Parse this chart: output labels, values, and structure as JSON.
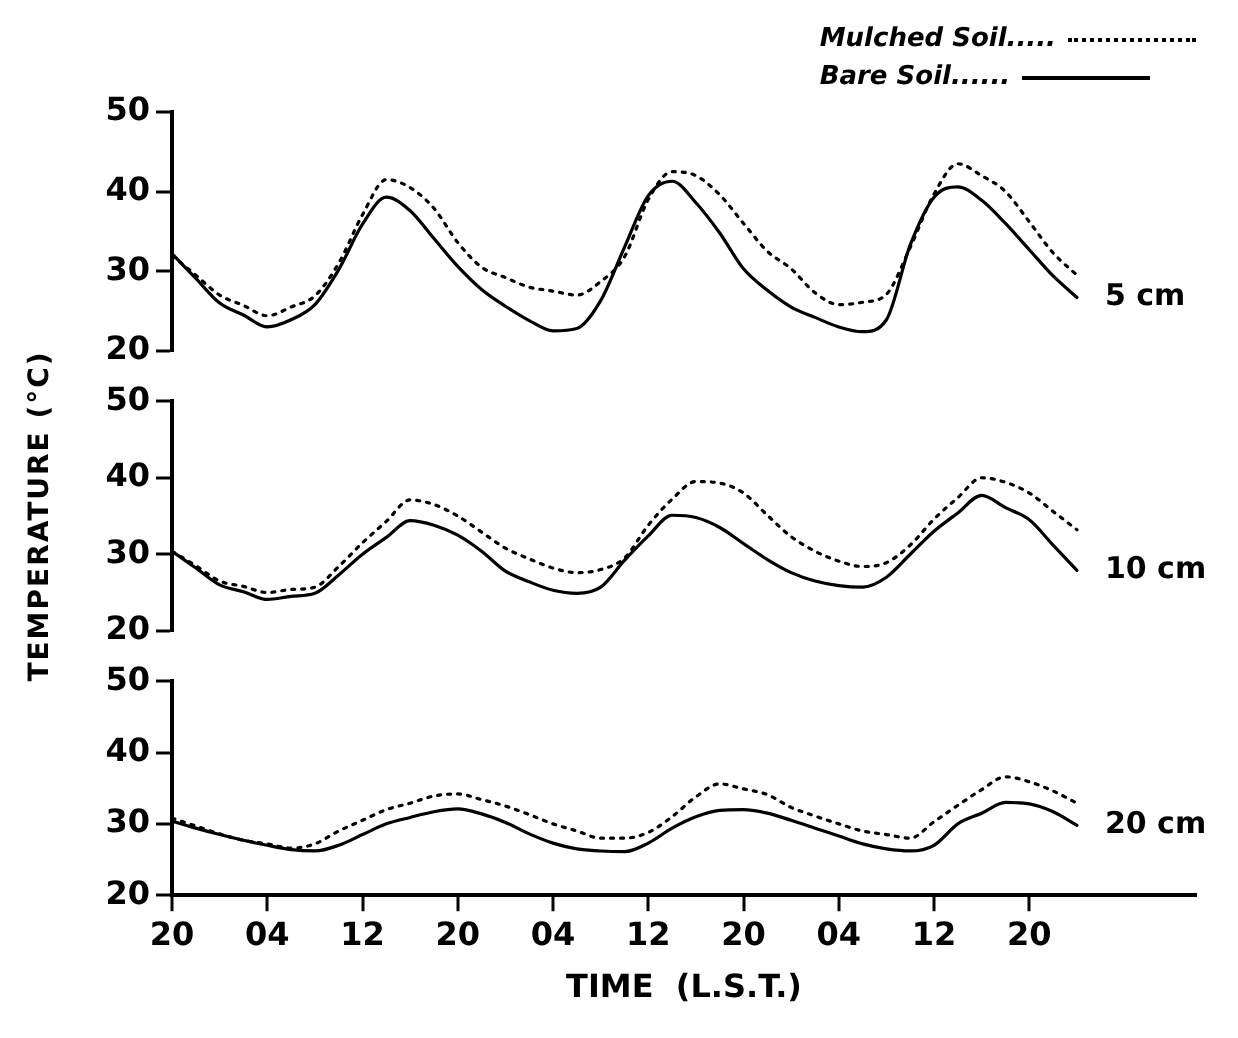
{
  "chart_data": [
    {
      "type": "line",
      "legend": "top right",
      "tick_labels": "y",
      "grid": false,
      "marker": "none",
      "annotations": [
        "5 cm"
      ],
      "categories": [
        "20",
        null,
        null,
        null,
        "04",
        null,
        null,
        null,
        "12",
        null,
        null,
        null,
        "20",
        null,
        null,
        null,
        "04",
        null,
        null,
        null,
        "12",
        null,
        null,
        null,
        "20",
        null,
        null,
        null,
        "04",
        null,
        null,
        null,
        "12",
        null,
        null,
        null,
        "20",
        null,
        null,
        null,
        null,
        null,
        null,
        null
      ],
      "ylim": [
        20,
        50
      ],
      "yticks": [
        20,
        30,
        40,
        50
      ],
      "series": [
        {
          "name": "Mulched Soil.....",
          "color": "#000000",
          "line_style": "dotted",
          "values": [
            32,
            29.5,
            27,
            25.7,
            24.4,
            25.5,
            26.9,
            31,
            37.1,
            41.5,
            40.5,
            37.9,
            33.6,
            30.5,
            29.2,
            28,
            27.5,
            27,
            28.7,
            31.8,
            39,
            42.5,
            42,
            39.6,
            36,
            32.5,
            30.3,
            27.3,
            25.8,
            26.1,
            27.1,
            33,
            39.7,
            43.5,
            42,
            40,
            36.2,
            32.3,
            29.5,
            null,
            null,
            null,
            null,
            null
          ]
        },
        {
          "name": "Bare Soil......",
          "color": "#000000",
          "line_style": "solid",
          "values": [
            32.2,
            29.1,
            26,
            24.5,
            23,
            23.9,
            25.8,
            30.2,
            35.9,
            39.3,
            37.6,
            34.1,
            30.6,
            27.7,
            25.6,
            23.8,
            22.5,
            22.8,
            26.3,
            33,
            39.5,
            41.3,
            38.6,
            34.8,
            30.3,
            27.6,
            25.5,
            24.2,
            23,
            22.4,
            23.9,
            33.3,
            39.3,
            40.6,
            38.9,
            36,
            32.7,
            29.4,
            26.7,
            null,
            null,
            null,
            null,
            null
          ]
        }
      ]
    },
    {
      "type": "line",
      "tick_labels": "y",
      "grid": false,
      "marker": "none",
      "ylabel": "TEMPERATURE (°C)",
      "annotations": [
        "10 cm"
      ],
      "categories": [
        "20",
        null,
        null,
        null,
        "04",
        null,
        null,
        null,
        "12",
        null,
        null,
        null,
        "20",
        null,
        null,
        null,
        "04",
        null,
        null,
        null,
        "12",
        null,
        null,
        null,
        "20",
        null,
        null,
        null,
        "04",
        null,
        null,
        null,
        "12",
        null,
        null,
        null,
        "20",
        null,
        null,
        null,
        null,
        null,
        null,
        null
      ],
      "ylim": [
        20,
        50
      ],
      "yticks": [
        20,
        30,
        40,
        50
      ],
      "series": [
        {
          "color": "#000000",
          "line_style": "dotted",
          "values": [
            30.4,
            28.5,
            26.5,
            25.8,
            25,
            25.4,
            25.7,
            28.4,
            31.5,
            34.3,
            37.1,
            36.5,
            35,
            32.9,
            30.8,
            29.4,
            28.2,
            27.6,
            28,
            29.5,
            33.8,
            37.2,
            39.5,
            39.3,
            38,
            35.1,
            32.3,
            30.4,
            29.1,
            28.4,
            28.9,
            31.2,
            34.6,
            37.4,
            40,
            39.4,
            38,
            35.6,
            33.2,
            null,
            null,
            null,
            null,
            null
          ]
        },
        {
          "color": "#000000",
          "line_style": "solid",
          "values": [
            30.4,
            28.2,
            26,
            25.1,
            24.1,
            24.5,
            24.9,
            27.3,
            30,
            32.2,
            34.4,
            33.8,
            32.5,
            30.4,
            27.8,
            26.4,
            25.3,
            24.9,
            25.7,
            29.2,
            32.4,
            35.1,
            34.8,
            33.5,
            31.4,
            29.3,
            27.6,
            26.5,
            25.9,
            25.7,
            27,
            30,
            33,
            35.4,
            37.7,
            36.1,
            34.5,
            31.2,
            27.9,
            null,
            null,
            null,
            null,
            null
          ]
        }
      ]
    },
    {
      "type": "line",
      "grid": false,
      "marker": "none",
      "xlabel": "TIME  (L.S.T.)",
      "annotations": [
        "20 cm"
      ],
      "categories": [
        "20",
        null,
        null,
        null,
        "04",
        null,
        null,
        null,
        "12",
        null,
        null,
        null,
        "20",
        null,
        null,
        null,
        "04",
        null,
        null,
        null,
        "12",
        null,
        null,
        null,
        "20",
        null,
        null,
        null,
        "04",
        null,
        null,
        null,
        "12",
        null,
        null,
        null,
        "20",
        null,
        null,
        null,
        null,
        null,
        null,
        null
      ],
      "ylim": [
        20,
        50
      ],
      "yticks": [
        20,
        30,
        40,
        50
      ],
      "series": [
        {
          "color": "#000000",
          "line_style": "dotted",
          "values": [
            30.8,
            29.7,
            28.6,
            27.7,
            27.2,
            26.6,
            27.2,
            29,
            30.5,
            32,
            32.9,
            33.9,
            34.2,
            33.4,
            32.5,
            31.3,
            30,
            29,
            28,
            28,
            28.8,
            31,
            33.8,
            35.6,
            34.9,
            34.1,
            32.3,
            31.1,
            30,
            29,
            28.5,
            28,
            30.3,
            32.6,
            34.8,
            36.6,
            35.9,
            34.6,
            32.9,
            null,
            null,
            null,
            null,
            null
          ]
        },
        {
          "color": "#000000",
          "line_style": "solid",
          "values": [
            30.4,
            29.4,
            28.5,
            27.7,
            27,
            26.4,
            26.2,
            27,
            28.5,
            30,
            30.9,
            31.7,
            32.1,
            31.4,
            30.2,
            28.6,
            27.3,
            26.5,
            26.2,
            26.1,
            27.3,
            29.4,
            31,
            31.9,
            32,
            31.5,
            30.5,
            29.4,
            28.3,
            27.2,
            26.5,
            26.2,
            27,
            30,
            31.5,
            33,
            32.8,
            31.7,
            29.8,
            null,
            null,
            null,
            null,
            null
          ]
        }
      ]
    }
  ]
}
